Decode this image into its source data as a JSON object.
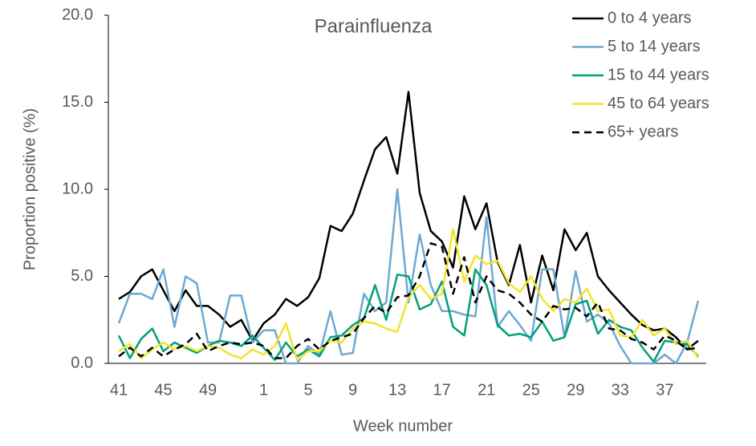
{
  "chart_data": {
    "type": "line",
    "title": "Parainfluenza",
    "x_label": "Week number",
    "y_label": "Proportion positive (%)",
    "categories": [
      41,
      null,
      null,
      null,
      45,
      null,
      null,
      null,
      49,
      null,
      null,
      null,
      null,
      1,
      null,
      null,
      null,
      5,
      null,
      null,
      null,
      9,
      null,
      null,
      null,
      13,
      null,
      null,
      null,
      17,
      null,
      null,
      null,
      21,
      null,
      null,
      null,
      25,
      null,
      null,
      null,
      29,
      null,
      null,
      null,
      33,
      null,
      null,
      null,
      37,
      null,
      null,
      null
    ],
    "ylim": [
      0,
      20
    ],
    "yticks": [
      {
        "value": 0,
        "label": "0.0"
      },
      {
        "value": 5,
        "label": "5.0"
      },
      {
        "value": 10,
        "label": "10.0"
      },
      {
        "value": 15,
        "label": "15.0"
      },
      {
        "value": 20,
        "label": "20.0"
      }
    ],
    "legend": "upper right",
    "series": [
      {
        "name": "0 to 4 years",
        "color": "#000000",
        "dashed": false,
        "values": [
          3.7,
          4.1,
          5.0,
          5.4,
          4.2,
          3.0,
          4.2,
          3.3,
          3.3,
          2.8,
          2.1,
          2.5,
          1.3,
          2.3,
          2.8,
          3.7,
          3.3,
          3.8,
          4.9,
          7.9,
          7.6,
          8.6,
          10.5,
          12.3,
          13.0,
          10.9,
          15.6,
          9.8,
          7.6,
          7.0,
          5.5,
          9.6,
          7.7,
          9.2,
          5.8,
          4.5,
          6.8,
          3.5,
          6.2,
          4.2,
          7.7,
          6.5,
          7.5,
          5.0,
          4.2,
          3.5,
          2.8,
          2.2,
          1.9,
          2.0,
          1.5,
          0.8,
          1.3
        ]
      },
      {
        "name": "5 to 14 years",
        "color": "#6fa8d0",
        "dashed": false,
        "values": [
          2.3,
          4.0,
          4.0,
          3.7,
          5.4,
          2.1,
          5.0,
          4.6,
          1.2,
          1.2,
          3.9,
          3.9,
          1.2,
          1.9,
          1.9,
          0.0,
          0.0,
          1.0,
          0.5,
          3.0,
          0.5,
          0.6,
          4.0,
          3.0,
          3.5,
          10.0,
          3.5,
          7.4,
          4.5,
          3.0,
          3.0,
          2.8,
          2.7,
          8.4,
          2.1,
          3.0,
          2.2,
          1.3,
          5.4,
          5.4,
          1.5,
          5.3,
          2.4,
          2.8,
          2.3,
          1.0,
          0.0,
          0.0,
          0.0,
          0.5,
          0.0,
          1.2,
          3.6
        ]
      },
      {
        "name": "15 to 44 years",
        "color": "#00a07a",
        "dashed": false,
        "values": [
          1.6,
          0.3,
          1.4,
          2.0,
          0.7,
          1.2,
          0.9,
          0.6,
          1.0,
          1.3,
          1.2,
          1.0,
          1.6,
          0.9,
          0.2,
          1.2,
          0.4,
          0.8,
          0.4,
          1.5,
          1.6,
          2.2,
          2.6,
          4.5,
          2.5,
          5.1,
          5.0,
          3.1,
          3.4,
          4.7,
          2.1,
          1.6,
          5.4,
          4.5,
          2.2,
          1.6,
          1.7,
          1.5,
          2.4,
          1.3,
          1.5,
          3.4,
          3.6,
          1.7,
          2.5,
          2.1,
          1.9,
          0.9,
          0.1,
          1.3,
          1.2,
          1.1,
          0.4
        ]
      },
      {
        "name": "45 to 64 years",
        "color": "#f2e42a",
        "dashed": false,
        "values": [
          0.7,
          1.1,
          0.3,
          0.8,
          1.2,
          0.8,
          1.0,
          0.7,
          1.0,
          0.9,
          0.5,
          0.3,
          0.8,
          0.5,
          1.0,
          2.3,
          0.2,
          0.7,
          0.7,
          1.3,
          1.2,
          2.0,
          2.4,
          2.3,
          2.0,
          1.8,
          3.8,
          4.5,
          3.7,
          4.0,
          7.7,
          4.7,
          6.2,
          5.7,
          5.9,
          4.6,
          4.1,
          5.0,
          3.7,
          3.0,
          3.7,
          3.5,
          4.3,
          3.0,
          3.1,
          1.6,
          1.5,
          2.5,
          1.6,
          2.0,
          1.1,
          1.3,
          0.3
        ]
      },
      {
        "name": "65+ years",
        "color": "#000000",
        "dashed": true,
        "values": [
          0.4,
          0.9,
          0.4,
          0.9,
          0.4,
          0.8,
          1.1,
          1.7,
          0.7,
          1.0,
          1.2,
          1.1,
          1.2,
          1.0,
          0.3,
          0.3,
          1.0,
          1.4,
          0.8,
          1.3,
          1.5,
          1.7,
          2.6,
          3.3,
          2.9,
          3.8,
          3.9,
          5.0,
          6.9,
          6.7,
          4.0,
          6.1,
          3.5,
          5.0,
          4.2,
          4.0,
          3.5,
          2.8,
          2.4,
          3.3,
          3.1,
          3.2,
          2.7,
          3.5,
          2.0,
          1.9,
          1.4,
          1.2,
          0.8,
          1.6,
          1.3,
          0.8,
          0.9
        ]
      }
    ]
  }
}
